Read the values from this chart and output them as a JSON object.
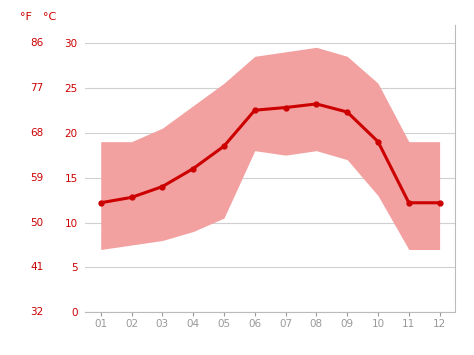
{
  "months": [
    1,
    2,
    3,
    4,
    5,
    6,
    7,
    8,
    9,
    10,
    11,
    12
  ],
  "avg_temp_c": [
    12.2,
    12.8,
    14.0,
    16.0,
    18.5,
    22.5,
    22.8,
    23.2,
    22.3,
    19.0,
    12.2,
    12.2
  ],
  "temp_high_c": [
    19.0,
    19.0,
    20.5,
    23.0,
    25.5,
    28.5,
    29.0,
    29.5,
    28.5,
    25.5,
    19.0,
    19.0
  ],
  "temp_low_c": [
    7.0,
    7.5,
    8.0,
    9.0,
    10.5,
    18.0,
    17.5,
    18.0,
    17.0,
    13.0,
    7.0,
    7.0
  ],
  "tick_labels_x": [
    "01",
    "02",
    "03",
    "04",
    "05",
    "06",
    "07",
    "08",
    "09",
    "10",
    "11",
    "12"
  ],
  "yticks_c": [
    0,
    5,
    10,
    15,
    20,
    25,
    30
  ],
  "yticks_f": [
    32,
    41,
    50,
    59,
    68,
    77,
    86
  ],
  "line_color": "#cc0000",
  "band_color": "#f2a0a0",
  "grid_color": "#d0d0d0",
  "axis_label_color": "#cc0000",
  "tick_color": "#999999",
  "bg_color": "#ffffff",
  "ylim_c": [
    0,
    32
  ],
  "xlim": [
    0.5,
    12.5
  ]
}
